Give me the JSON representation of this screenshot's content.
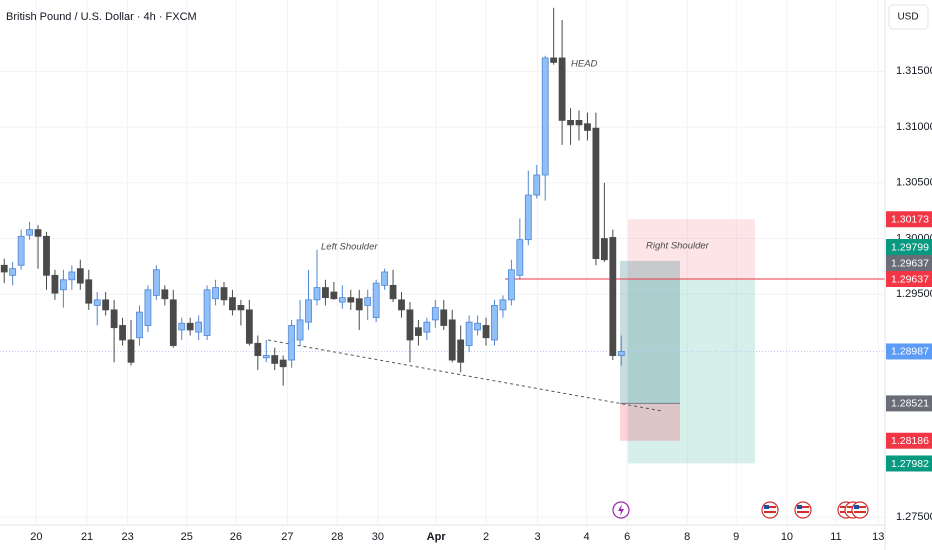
{
  "chart_data": {
    "type": "candlestick",
    "title": "British Pound / U.S. Dollar · 4h · FXCM",
    "currency": "USD",
    "annotations": [
      "HEAD",
      "Left Shoulder",
      "Right Shoulder"
    ],
    "up_color": "#90bff9",
    "up_border": "#4f86d1",
    "down_color": "#4a4a4a",
    "grid": true,
    "xlim": [
      -0.5,
      104.2
    ],
    "ylim": [
      1.2743,
      1.3214
    ],
    "xticks": [
      {
        "value": 3.8,
        "label": "20"
      },
      {
        "value": 9.8,
        "label": "21"
      },
      {
        "value": 14.6,
        "label": "23"
      },
      {
        "value": 21.6,
        "label": "25"
      },
      {
        "value": 27.4,
        "label": "26"
      },
      {
        "value": 33.5,
        "label": "27"
      },
      {
        "value": 39.4,
        "label": "28"
      },
      {
        "value": 44.2,
        "label": "30"
      },
      {
        "value": 51.1,
        "label": "Apr"
      },
      {
        "value": 57.0,
        "label": "2"
      },
      {
        "value": 63.1,
        "label": "3"
      },
      {
        "value": 68.9,
        "label": "4"
      },
      {
        "value": 73.7,
        "label": "6"
      },
      {
        "value": 80.8,
        "label": "8"
      },
      {
        "value": 86.6,
        "label": "9"
      },
      {
        "value": 92.6,
        "label": "10"
      },
      {
        "value": 98.4,
        "label": "11"
      },
      {
        "value": 103.4,
        "label": "13"
      }
    ],
    "yticks": [
      {
        "value": 1.275,
        "label": "1.27500"
      },
      {
        "value": 1.295,
        "label": "1.29500"
      },
      {
        "value": 1.3,
        "label": "1.30000"
      },
      {
        "value": 1.305,
        "label": "1.30500"
      },
      {
        "value": 1.31,
        "label": "1.31000"
      },
      {
        "value": 1.315,
        "label": "1.31500"
      }
    ],
    "price_labels": [
      {
        "value": 1.30173,
        "label": "1.30173",
        "color": "#f23645"
      },
      {
        "value": 1.29799,
        "label": "1.29799",
        "color": "#089981"
      },
      {
        "value": 1.29637,
        "label": "1.29637",
        "color": "#6a6d78"
      },
      {
        "value": 1.29637,
        "label": "1.29637",
        "color": "#f23645"
      },
      {
        "value": 1.28987,
        "label": "1.28987",
        "color": "#5b9cf6"
      },
      {
        "value": 1.28521,
        "label": "1.28521",
        "color": "#6a6d78"
      },
      {
        "value": 1.28186,
        "label": "1.28186",
        "color": "#f23645"
      },
      {
        "value": 1.27982,
        "label": "1.27982",
        "color": "#089981"
      }
    ],
    "open": [
      1.2976,
      1.2967,
      1.2976,
      1.3003,
      1.3008,
      1.3002,
      1.2967,
      1.2954,
      1.2963,
      1.2973,
      1.2963,
      1.294,
      1.2945,
      1.2936,
      1.2922,
      1.2909,
      1.2911,
      1.2922,
      1.2949,
      1.2954,
      1.2945,
      1.2918,
      1.2924,
      1.2916,
      1.2913,
      1.2946,
      1.2956,
      1.2947,
      1.294,
      1.2936,
      1.2906,
      1.2893,
      1.2895,
      1.2891,
      1.2891,
      1.2909,
      1.2925,
      1.2945,
      1.2956,
      1.2952,
      1.2943,
      1.2947,
      1.2946,
      1.294,
      1.2929,
      1.2958,
      1.2958,
      1.2945,
      1.2936,
      1.292,
      1.2916,
      1.2927,
      1.2936,
      1.2927,
      1.2909,
      1.2904,
      1.2918,
      1.2922,
      1.2909,
      1.2936,
      1.2945,
      1.2967,
      1.2999,
      1.3039,
      1.3057,
      1.3162,
      1.3162,
      1.3106,
      1.3106,
      1.3103,
      1.3099,
      1.3,
      1.3001,
      1.2895
    ],
    "high": [
      1.2982,
      1.2979,
      1.3008,
      1.3015,
      1.3012,
      1.3006,
      1.2972,
      1.2972,
      1.2976,
      1.2981,
      1.2972,
      1.2952,
      1.2952,
      1.2945,
      1.2929,
      1.2927,
      1.294,
      1.2958,
      1.2976,
      1.2958,
      1.2954,
      1.2929,
      1.2929,
      1.2931,
      1.2958,
      1.2963,
      1.2961,
      1.2954,
      1.2945,
      1.2945,
      1.2913,
      1.2909,
      1.2902,
      1.2895,
      1.2927,
      1.2945,
      1.2972,
      1.299,
      1.2963,
      1.2961,
      1.2958,
      1.2954,
      1.2954,
      1.2954,
      1.2963,
      1.2973,
      1.2972,
      1.2952,
      1.2943,
      1.2927,
      1.2929,
      1.2945,
      1.2945,
      1.2936,
      1.2922,
      1.2931,
      1.2931,
      1.2929,
      1.2945,
      1.2949,
      1.2981,
      1.3018,
      1.3061,
      1.3066,
      1.3164,
      1.3207,
      1.3196,
      1.3117,
      1.3115,
      1.3113,
      1.3113,
      1.305,
      1.3008,
      1.2913
    ],
    "low": [
      1.296,
      1.2958,
      1.2972,
      1.2999,
      1.2973,
      1.2954,
      1.2945,
      1.2938,
      1.2954,
      1.2954,
      1.2936,
      1.2922,
      1.2931,
      1.2889,
      1.2904,
      1.2886,
      1.2904,
      1.2916,
      1.2945,
      1.294,
      1.2902,
      1.2909,
      1.2913,
      1.2909,
      1.2909,
      1.294,
      1.294,
      1.2931,
      1.2922,
      1.2904,
      1.2882,
      1.2889,
      1.2882,
      1.2868,
      1.2884,
      1.2904,
      1.2918,
      1.294,
      1.294,
      1.2945,
      1.2937,
      1.2936,
      1.2918,
      1.2927,
      1.2925,
      1.2954,
      1.2943,
      1.2929,
      1.2889,
      1.2904,
      1.2909,
      1.292,
      1.2918,
      1.2889,
      1.288,
      1.2898,
      1.2913,
      1.2904,
      1.2904,
      1.2929,
      1.294,
      1.2963,
      1.2994,
      1.3036,
      1.3034,
      1.3156,
      1.3084,
      1.3084,
      1.3088,
      1.3088,
      1.2976,
      1.2979,
      1.2891,
      1.2886
    ],
    "close": [
      1.297,
      1.2973,
      1.3002,
      1.3008,
      1.3002,
      1.2967,
      1.2951,
      1.2963,
      1.297,
      1.296,
      1.2942,
      1.2945,
      1.2936,
      1.292,
      1.2909,
      1.2889,
      1.2934,
      1.2954,
      1.2972,
      1.2946,
      1.2904,
      1.2924,
      1.2918,
      1.2925,
      1.2954,
      1.2956,
      1.2945,
      1.2936,
      1.2936,
      1.2906,
      1.2895,
      1.2895,
      1.2888,
      1.2885,
      1.2922,
      1.2927,
      1.2945,
      1.2956,
      1.2947,
      1.2946,
      1.2947,
      1.2943,
      1.2936,
      1.2947,
      1.296,
      1.297,
      1.2946,
      1.2936,
      1.2909,
      1.2913,
      1.2925,
      1.2938,
      1.2922,
      1.2891,
      1.2889,
      1.2925,
      1.2924,
      1.2911,
      1.294,
      1.2945,
      1.2972,
      1.2999,
      1.3039,
      1.3057,
      1.3162,
      1.3158,
      1.3106,
      1.3102,
      1.3102,
      1.3097,
      1.2982,
      1.2981,
      1.2895,
      1.28987
    ]
  }
}
